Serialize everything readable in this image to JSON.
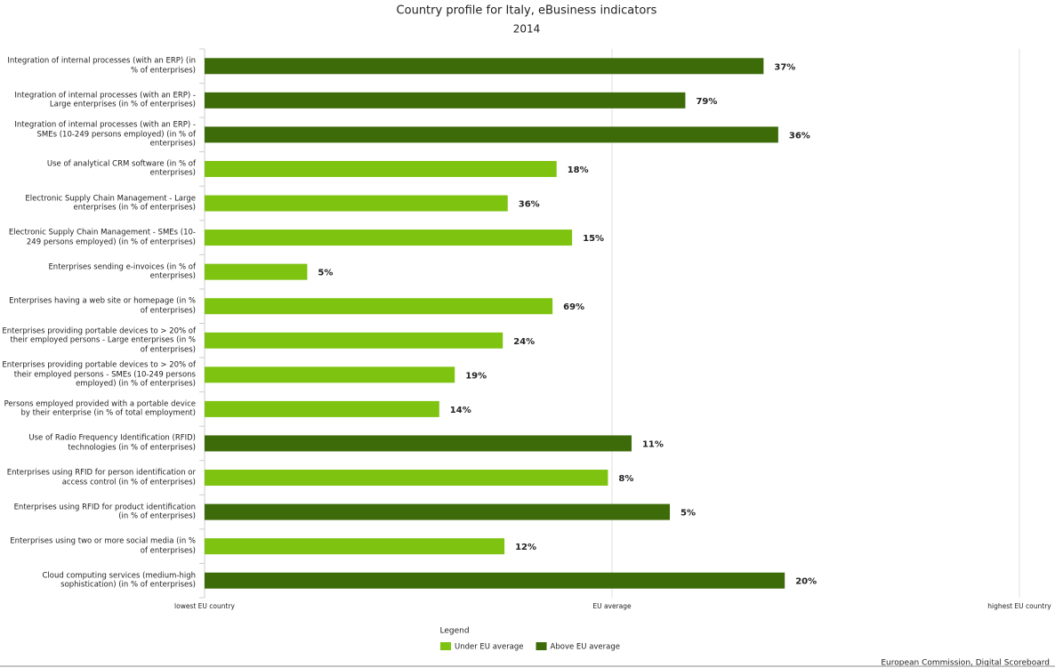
{
  "chart_data": {
    "type": "bar",
    "orientation": "horizontal",
    "title": "Country profile for Italy, eBusiness indicators",
    "subtitle": "2014",
    "categories": [
      "Integration of internal processes (with an ERP) (in % of enterprises)",
      "Integration of internal processes (with an ERP) - Large enterprises (in % of enterprises)",
      "Integration of internal processes (with an ERP) - SMEs (10-249 persons employed) (in % of enterprises)",
      "Use of analytical CRM software (in % of enterprises)",
      "Electronic Supply Chain Management - Large enterprises (in % of enterprises)",
      "Electronic Supply Chain Management - SMEs (10-249 persons employed) (in % of enterprises)",
      "Enterprises sending e-invoices (in % of enterprises)",
      "Enterprises having a web site or homepage (in % of enterprises)",
      "Enterprises providing portable devices to > 20% of their employed persons - Large enterprises (in % of enterprises)",
      "Enterprises providing portable devices to > 20% of their employed persons - SMEs (10-249 persons employed) (in % of enterprises)",
      "Persons employed provided with a portable device by their enterprise (in % of total employment)",
      "Use of Radio Frequency Identification (RFID) technologies (in % of enterprises)",
      "Enterprises using RFID for person identification or access control (in % of enterprises)",
      "Enterprises using RFID for product identification (in % of enterprises)",
      "Enterprises using two or more social media (in % of enterprises)",
      "Cloud computing services (medium-high sophistication) (in % of enterprises)"
    ],
    "labels": [
      "37%",
      "79%",
      "36%",
      "18%",
      "36%",
      "15%",
      "5%",
      "69%",
      "24%",
      "19%",
      "14%",
      "11%",
      "8%",
      "5%",
      "12%",
      "20%"
    ],
    "series": [
      {
        "name": "Under EU average",
        "color": "#7dc30f",
        "values": [
          null,
          null,
          null,
          43.2,
          37.2,
          45.1,
          12.6,
          42.7,
          36.6,
          30.7,
          28.8,
          null,
          49.5,
          null,
          36.8,
          null
        ]
      },
      {
        "name": "Above EU average",
        "color": "#3d6b0a",
        "values": [
          68.6,
          59.0,
          70.4,
          null,
          null,
          null,
          null,
          null,
          null,
          null,
          null,
          52.4,
          null,
          57.1,
          null,
          71.2
        ]
      }
    ],
    "xlim": [
      0,
      100
    ],
    "xticks": [
      {
        "value": 0,
        "label": "lowest EU country"
      },
      {
        "value": 50,
        "label": "EU average"
      },
      {
        "value": 100,
        "label": "highest EU country"
      }
    ],
    "grid": true,
    "legend_title": "Legend",
    "legend_position": "bottom",
    "source": "European Commission, Digital Scoreboard"
  }
}
